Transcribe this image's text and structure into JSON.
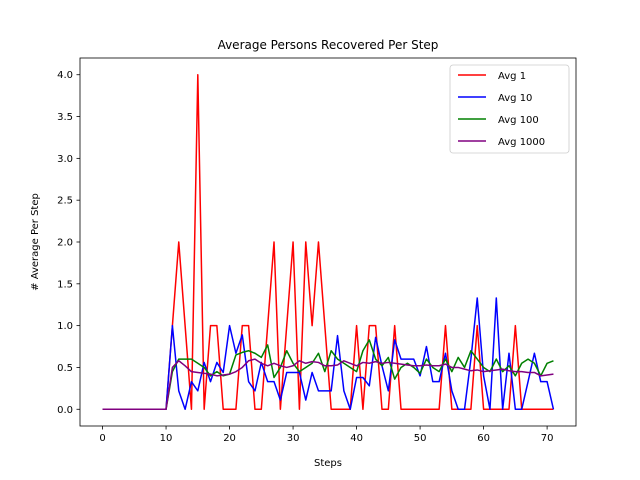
{
  "chart_data": {
    "type": "line",
    "title": "Average Persons Recovered Per Step",
    "xlabel": "Steps",
    "ylabel": "# Average Per Step",
    "xlim": [
      -3.55,
      74.55
    ],
    "ylim": [
      -0.2,
      4.2
    ],
    "xticks": [
      0,
      10,
      20,
      30,
      40,
      50,
      60,
      70
    ],
    "yticks": [
      0.0,
      0.5,
      1.0,
      1.5,
      2.0,
      2.5,
      3.0,
      3.5,
      4.0
    ],
    "ytick_labels": [
      "0.0",
      "0.5",
      "1.0",
      "1.5",
      "2.0",
      "2.5",
      "3.0",
      "3.5",
      "4.0"
    ],
    "grid": false,
    "legend_position": "top-right",
    "x": [
      0,
      1,
      2,
      3,
      4,
      5,
      6,
      7,
      8,
      9,
      10,
      11,
      12,
      13,
      14,
      15,
      16,
      17,
      18,
      19,
      20,
      21,
      22,
      23,
      24,
      25,
      26,
      27,
      28,
      29,
      30,
      31,
      32,
      33,
      34,
      35,
      36,
      37,
      38,
      39,
      40,
      41,
      42,
      43,
      44,
      45,
      46,
      47,
      48,
      49,
      50,
      51,
      52,
      53,
      54,
      55,
      56,
      57,
      58,
      59,
      60,
      61,
      62,
      63,
      64,
      65,
      66,
      67,
      68,
      69,
      70,
      71
    ],
    "series": [
      {
        "name": "Avg 1",
        "color": "#ff0000",
        "values": [
          0,
          0,
          0,
          0,
          0,
          0,
          0,
          0,
          0,
          0,
          0,
          1,
          2,
          1,
          0,
          4,
          0,
          1,
          1,
          0,
          0,
          0,
          1,
          1,
          0,
          0,
          1,
          2,
          0,
          1,
          2,
          0,
          2,
          1,
          2,
          1,
          0,
          0,
          0,
          0,
          1,
          0,
          1,
          1,
          0,
          0,
          1,
          0,
          0,
          0,
          0,
          0,
          0,
          0,
          1,
          0,
          0,
          0,
          0,
          1,
          0,
          0,
          0,
          0,
          0,
          1,
          0,
          0,
          0,
          0,
          0,
          0
        ]
      },
      {
        "name": "Avg 10",
        "color": "#0000ff",
        "values": [
          0,
          0,
          0,
          0,
          0,
          0,
          0,
          0,
          0,
          0,
          0,
          1.0,
          0.22,
          0,
          0.33,
          0.22,
          0.56,
          0.33,
          0.56,
          0.44,
          1.0,
          0.67,
          0.89,
          0.33,
          0.22,
          0.56,
          0.33,
          0.33,
          0.11,
          0.44,
          0.44,
          0.44,
          0.11,
          0.44,
          0.22,
          0.22,
          0.22,
          0.88,
          0.22,
          0,
          0.38,
          0.38,
          0.28,
          0.86,
          0.52,
          0.22,
          0.83,
          0.6,
          0.6,
          0.6,
          0.4,
          0.75,
          0.33,
          0.33,
          0.67,
          0.22,
          0,
          0,
          0.6,
          1.33,
          0.4,
          0,
          1.33,
          0,
          0.67,
          0,
          0,
          0.33,
          0.67,
          0.33,
          0.33,
          0
        ]
      },
      {
        "name": "Avg 100",
        "color": "#008000",
        "values": [
          0,
          0,
          0,
          0,
          0,
          0,
          0,
          0,
          0,
          0,
          0,
          0.45,
          0.6,
          0.6,
          0.6,
          0.55,
          0.5,
          0.4,
          0.45,
          0.4,
          0.42,
          0.65,
          0.68,
          0.7,
          0.67,
          0.62,
          0.77,
          0.38,
          0.5,
          0.7,
          0.55,
          0.45,
          0.5,
          0.55,
          0.67,
          0.45,
          0.7,
          0.6,
          0.55,
          0.5,
          0.45,
          0.7,
          0.83,
          0.6,
          0.52,
          0.62,
          0.36,
          0.5,
          0.55,
          0.5,
          0.43,
          0.6,
          0.5,
          0.45,
          0.6,
          0.45,
          0.62,
          0.5,
          0.7,
          0.6,
          0.5,
          0.45,
          0.6,
          0.45,
          0.52,
          0.4,
          0.55,
          0.6,
          0.55,
          0.4,
          0.55,
          0.58
        ]
      },
      {
        "name": "Avg 1000",
        "color": "#800080",
        "values": [
          0,
          0,
          0,
          0,
          0,
          0,
          0,
          0,
          0,
          0,
          0,
          0.5,
          0.58,
          0.52,
          0.45,
          0.44,
          0.43,
          0.42,
          0.4,
          0.41,
          0.42,
          0.45,
          0.5,
          0.58,
          0.6,
          0.55,
          0.52,
          0.55,
          0.52,
          0.5,
          0.52,
          0.58,
          0.55,
          0.57,
          0.56,
          0.52,
          0.52,
          0.53,
          0.58,
          0.55,
          0.52,
          0.56,
          0.55,
          0.57,
          0.55,
          0.56,
          0.55,
          0.54,
          0.53,
          0.52,
          0.52,
          0.53,
          0.52,
          0.52,
          0.54,
          0.5,
          0.5,
          0.48,
          0.46,
          0.47,
          0.45,
          0.46,
          0.47,
          0.48,
          0.46,
          0.45,
          0.45,
          0.44,
          0.44,
          0.4,
          0.41,
          0.42
        ]
      }
    ]
  }
}
